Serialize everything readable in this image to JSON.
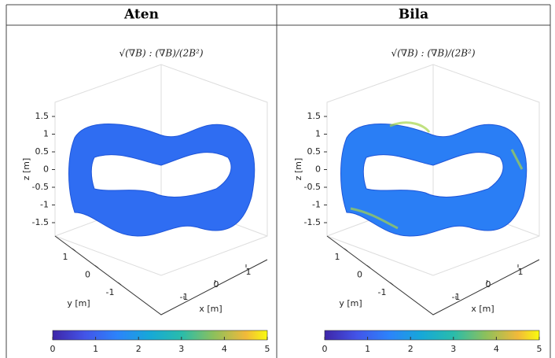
{
  "panels": [
    {
      "title": "Aten",
      "formula": "√(∇B) : (∇B)/(2B²)",
      "z_label": "z [m]",
      "z_ticks": [
        1.5,
        1,
        0.5,
        0,
        -0.5,
        -1,
        -1.5
      ],
      "y_label": "y [m]",
      "y_ticks": [
        1,
        0,
        -1
      ],
      "x_label": "x [m]",
      "x_ticks": [
        1,
        0,
        -1
      ],
      "colorbar_ticks": [
        0,
        1,
        2,
        3,
        4,
        5
      ]
    },
    {
      "title": "Bila",
      "formula": "√(∇B) : (∇B)/(2B²)",
      "z_label": "z [m]",
      "z_ticks": [
        1.5,
        1,
        0.5,
        0,
        -0.5,
        -1,
        -1.5
      ],
      "y_label": "y [m]",
      "y_ticks": [
        1,
        0,
        -1
      ],
      "x_label": "x [m]",
      "x_ticks": [
        1,
        0,
        -1
      ],
      "colorbar_ticks": [
        0,
        1,
        2,
        3,
        4,
        5
      ]
    }
  ]
}
